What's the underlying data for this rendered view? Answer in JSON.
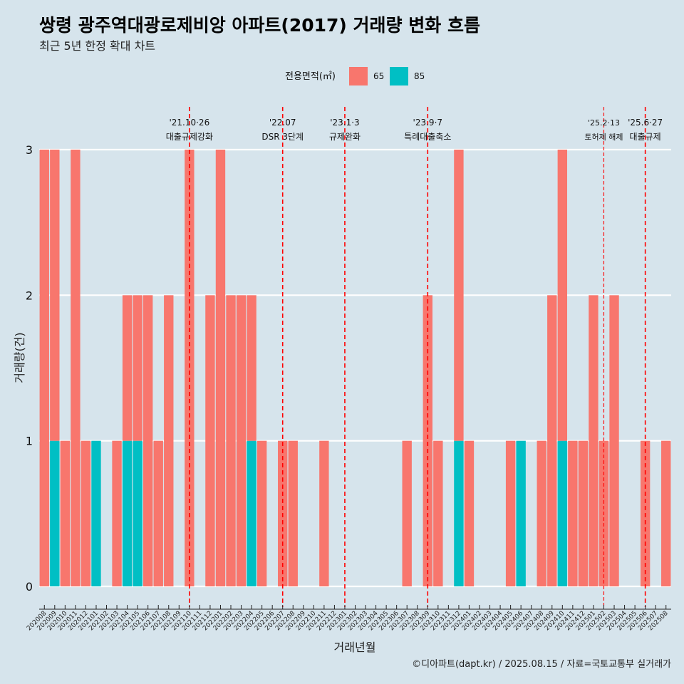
{
  "chart_data": {
    "type": "bar",
    "title": "쌍령 광주역대광로제비앙 아파트(2017) 거래량 변화 흐름",
    "subtitle": "최근 5년 한정 확대 차트",
    "xlabel": "거래년월",
    "ylabel": "거래량(건)",
    "ylim": [
      0,
      3
    ],
    "yticks": [
      0,
      1,
      2,
      3
    ],
    "grid": "horizontal",
    "legend": {
      "title": "전용면적(㎡)",
      "position": "top",
      "entries": [
        {
          "name": "65",
          "color": "#f8766d"
        },
        {
          "name": "85",
          "color": "#00bfc4"
        }
      ]
    },
    "categories": [
      "202008",
      "202009",
      "202010",
      "202011",
      "202012",
      "202101",
      "202102",
      "202103",
      "202104",
      "202105",
      "202106",
      "202107",
      "202108",
      "202109",
      "202110",
      "202111",
      "202112",
      "202201",
      "202202",
      "202203",
      "202204",
      "202205",
      "202206",
      "202207",
      "202208",
      "202209",
      "202210",
      "202211",
      "202212",
      "202301",
      "202302",
      "202303",
      "202304",
      "202305",
      "202306",
      "202307",
      "202308",
      "202309",
      "202310",
      "202311",
      "202312",
      "202401",
      "202402",
      "202403",
      "202404",
      "202405",
      "202406",
      "202407",
      "202408",
      "202409",
      "202410",
      "202411",
      "202412",
      "202501",
      "202502",
      "202503",
      "202504",
      "202505",
      "202506",
      "202507",
      "202508"
    ],
    "series": [
      {
        "name": "65",
        "color": "#f8766d",
        "values": [
          3,
          2,
          1,
          3,
          1,
          0,
          0,
          1,
          1,
          1,
          2,
          1,
          2,
          0,
          3,
          0,
          2,
          3,
          2,
          2,
          1,
          1,
          0,
          1,
          1,
          0,
          0,
          1,
          0,
          0,
          0,
          0,
          0,
          0,
          0,
          1,
          0,
          2,
          1,
          0,
          2,
          1,
          0,
          0,
          0,
          1,
          0,
          0,
          1,
          2,
          2,
          1,
          1,
          2,
          1,
          2,
          0,
          0,
          1,
          0,
          1
        ]
      },
      {
        "name": "85",
        "color": "#00bfc4",
        "values": [
          0,
          1,
          0,
          0,
          0,
          1,
          0,
          0,
          1,
          1,
          0,
          0,
          0,
          0,
          0,
          0,
          0,
          0,
          0,
          0,
          1,
          0,
          0,
          0,
          0,
          0,
          0,
          0,
          0,
          0,
          0,
          0,
          0,
          0,
          0,
          0,
          0,
          0,
          0,
          0,
          1,
          0,
          0,
          0,
          0,
          0,
          1,
          0,
          0,
          0,
          1,
          0,
          0,
          0,
          0,
          0,
          0,
          0,
          0,
          0,
          0
        ]
      }
    ],
    "annotations": [
      {
        "date": "'21.10·26",
        "label": "대출규제강화",
        "at": "202110",
        "style": "normal"
      },
      {
        "date": "'22.07",
        "label": "DSR 3단계",
        "at": "202207",
        "style": "normal"
      },
      {
        "date": "'23.1·3",
        "label": "규제완화",
        "at": "202301",
        "style": "normal"
      },
      {
        "date": "'23.9·7",
        "label": "특례대출축소",
        "at": "202309",
        "style": "normal"
      },
      {
        "date": "'25.2·13",
        "label": "토허제 해제",
        "at": "202502",
        "style": "small"
      },
      {
        "date": "'25.6·27",
        "label": "대출규제",
        "at": "202506",
        "style": "normal"
      }
    ],
    "caption": "©디아파트(dapt.kr) / 2025.08.15 / 자료=국토교통부 실거래가"
  }
}
